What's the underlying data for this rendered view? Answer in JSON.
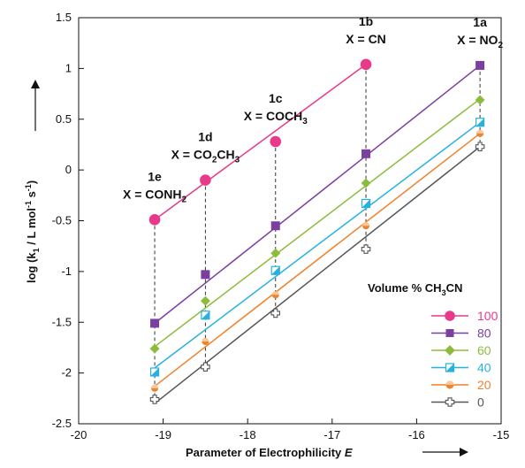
{
  "chart_data": {
    "type": "scatter",
    "title": "",
    "xlabel": "Parameter of Electrophilicity E",
    "ylabel": "log (k1 / L mol-1 s-1)",
    "xlim": [
      -20,
      -15
    ],
    "ylim": [
      -2.5,
      1.5
    ],
    "x_ticks": [
      -20,
      -19,
      -18,
      -17,
      -16,
      -15
    ],
    "y_ticks": [
      -2.5,
      -2,
      -1.5,
      -1,
      -0.5,
      0,
      0.5,
      1,
      1.5
    ],
    "x": [
      -19.1,
      -18.5,
      -17.67,
      -16.6,
      -15.25
    ],
    "compounds": [
      {
        "id": "1e",
        "label": "X = CONH2",
        "x": -19.1
      },
      {
        "id": "1d",
        "label": "X = CO2CH3",
        "x": -18.5
      },
      {
        "id": "1c",
        "label": "X = COCH3",
        "x": -17.67
      },
      {
        "id": "1b",
        "label": "X = CN",
        "x": -16.6
      },
      {
        "id": "1a",
        "label": "X = NO2",
        "x": -15.25
      }
    ],
    "legend_title": "Volume % CH3CN",
    "legend_position": "bottom-right",
    "grid": false,
    "series": [
      {
        "name": "100",
        "color": "#e8398a",
        "marker": "circle-filled",
        "values": [
          -0.49,
          -0.1,
          0.28,
          1.04,
          null
        ],
        "fit": [
          [
            -19.1,
            -0.49
          ],
          [
            -16.6,
            1.04
          ]
        ]
      },
      {
        "name": "80",
        "color": "#7b3fa0",
        "marker": "square-filled",
        "values": [
          -1.51,
          -1.03,
          -0.55,
          0.16,
          1.03
        ],
        "fit": [
          [
            -19.1,
            -1.51
          ],
          [
            -15.25,
            1.03
          ]
        ]
      },
      {
        "name": "60",
        "color": "#8dbb3c",
        "marker": "diamond-filled",
        "values": [
          -1.76,
          -1.29,
          -0.82,
          -0.13,
          0.69
        ],
        "fit": [
          [
            -19.1,
            -1.74
          ],
          [
            -15.25,
            0.7
          ]
        ]
      },
      {
        "name": "40",
        "color": "#27b1e0",
        "marker": "square-half",
        "values": [
          -1.99,
          -1.43,
          -0.99,
          -0.33,
          0.47
        ],
        "fit": [
          [
            -19.1,
            -1.95
          ],
          [
            -15.25,
            0.47
          ]
        ]
      },
      {
        "name": "20",
        "color": "#f0822c",
        "marker": "circle-half",
        "values": [
          -2.15,
          -1.69,
          -1.23,
          -0.55,
          0.36
        ],
        "fit": [
          [
            -19.1,
            -2.13
          ],
          [
            -15.25,
            0.36
          ]
        ]
      },
      {
        "name": "0",
        "color": "#555555",
        "marker": "cross-open",
        "values": [
          -2.26,
          -1.94,
          -1.41,
          -0.78,
          0.23
        ],
        "fit": [
          [
            -19.1,
            -2.3
          ],
          [
            -15.25,
            0.23
          ]
        ]
      }
    ]
  }
}
